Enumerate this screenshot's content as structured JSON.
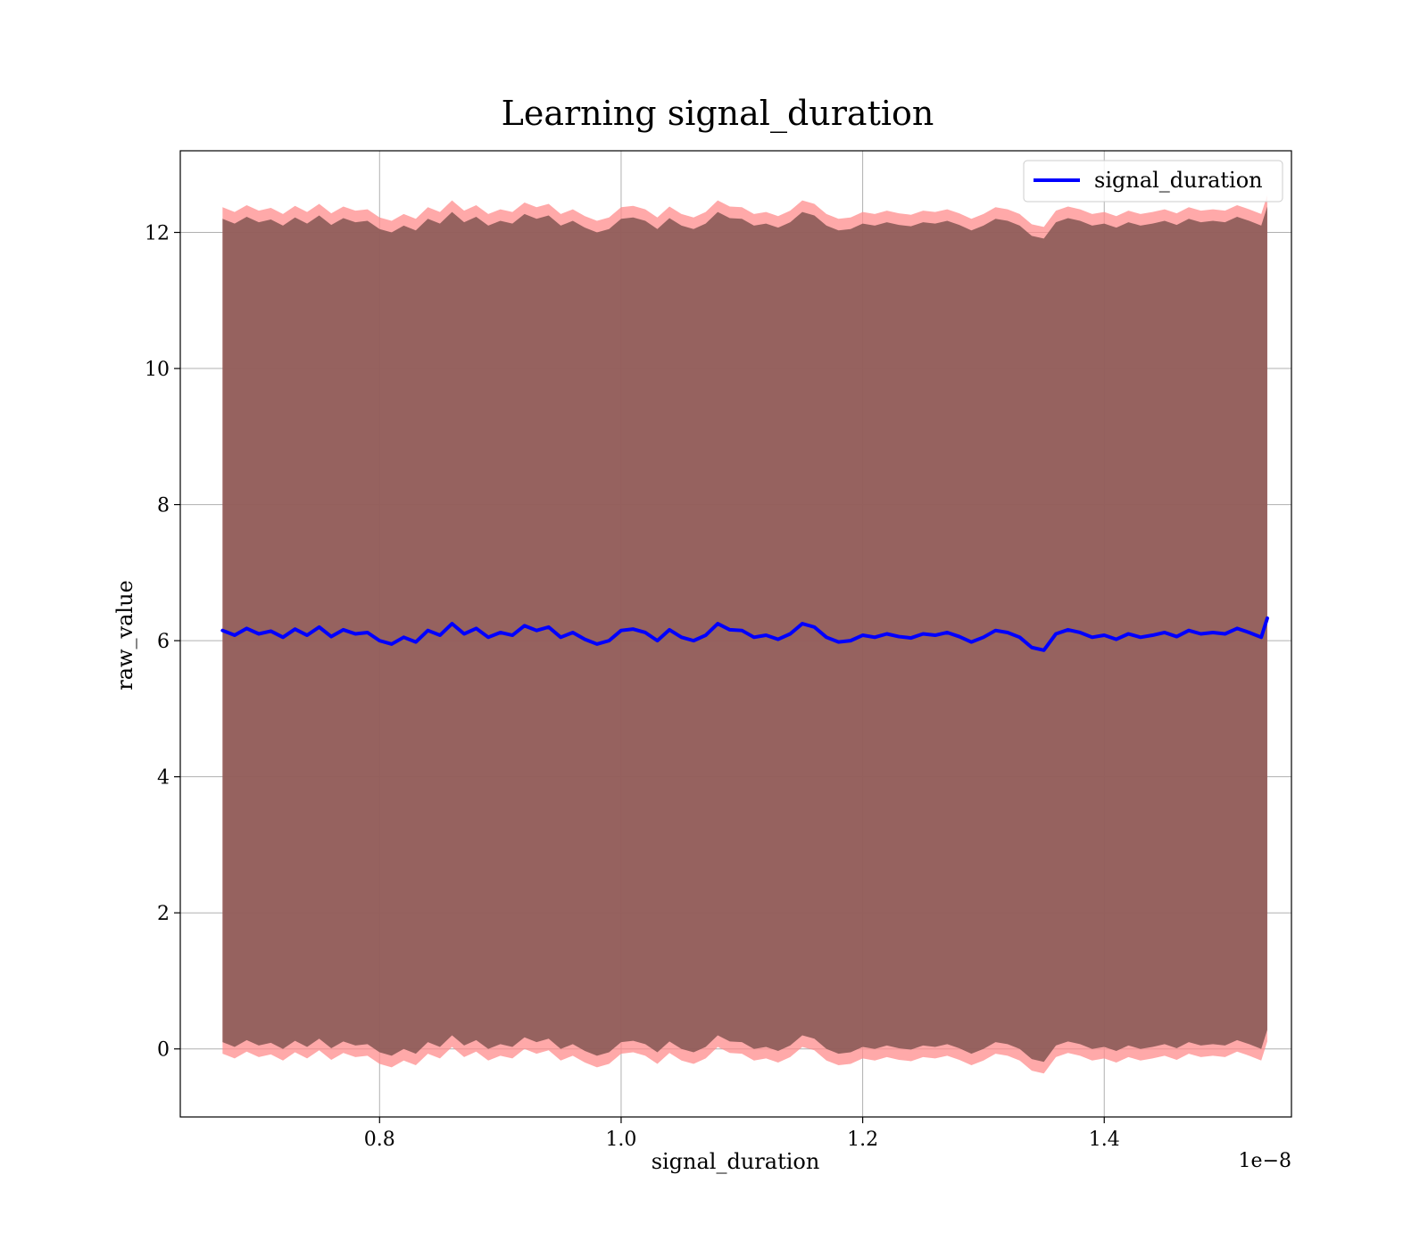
{
  "chart_data": {
    "type": "line",
    "title": "Learning signal_duration",
    "xlabel": "signal_duration",
    "ylabel": "raw_value",
    "x_offset_label": "1e−8",
    "xlim": [
      0.635,
      1.555
    ],
    "ylim": [
      -1.0,
      13.2
    ],
    "x_ticks": [
      0.8,
      1.0,
      1.2,
      1.4
    ],
    "x_tick_labels": [
      "0.8",
      "1.0",
      "1.2",
      "1.4"
    ],
    "y_ticks": [
      0,
      2,
      4,
      6,
      8,
      10,
      12
    ],
    "y_tick_labels": [
      "0",
      "2",
      "4",
      "6",
      "8",
      "10",
      "12"
    ],
    "grid": true,
    "legend_position": "top-right",
    "series": [
      {
        "name": "signal_duration",
        "color": "#0000ff",
        "x": [
          0.67,
          0.68,
          0.69,
          0.7,
          0.71,
          0.72,
          0.73,
          0.74,
          0.75,
          0.76,
          0.77,
          0.78,
          0.79,
          0.8,
          0.81,
          0.82,
          0.83,
          0.84,
          0.85,
          0.86,
          0.87,
          0.88,
          0.89,
          0.9,
          0.91,
          0.92,
          0.93,
          0.94,
          0.95,
          0.96,
          0.97,
          0.98,
          0.99,
          1.0,
          1.01,
          1.02,
          1.03,
          1.04,
          1.05,
          1.06,
          1.07,
          1.08,
          1.09,
          1.1,
          1.11,
          1.12,
          1.13,
          1.14,
          1.15,
          1.16,
          1.17,
          1.18,
          1.19,
          1.2,
          1.21,
          1.22,
          1.23,
          1.24,
          1.25,
          1.26,
          1.27,
          1.28,
          1.29,
          1.3,
          1.31,
          1.32,
          1.33,
          1.34,
          1.35,
          1.36,
          1.37,
          1.38,
          1.39,
          1.4,
          1.41,
          1.42,
          1.43,
          1.44,
          1.45,
          1.46,
          1.47,
          1.48,
          1.49,
          1.5,
          1.51,
          1.52,
          1.53,
          1.535
        ],
        "values": [
          6.15,
          6.08,
          6.18,
          6.1,
          6.14,
          6.05,
          6.17,
          6.08,
          6.2,
          6.06,
          6.16,
          6.1,
          6.12,
          6.0,
          5.95,
          6.05,
          5.98,
          6.15,
          6.08,
          6.25,
          6.1,
          6.18,
          6.05,
          6.12,
          6.08,
          6.22,
          6.15,
          6.2,
          6.05,
          6.12,
          6.02,
          5.95,
          6.0,
          6.15,
          6.17,
          6.12,
          6.0,
          6.16,
          6.05,
          6.0,
          6.08,
          6.25,
          6.16,
          6.15,
          6.05,
          6.08,
          6.02,
          6.1,
          6.25,
          6.2,
          6.05,
          5.98,
          6.0,
          6.08,
          6.05,
          6.1,
          6.06,
          6.04,
          6.1,
          6.08,
          6.12,
          6.06,
          5.98,
          6.05,
          6.15,
          6.12,
          6.05,
          5.9,
          5.86,
          6.1,
          6.16,
          6.12,
          6.05,
          6.08,
          6.02,
          6.1,
          6.05,
          6.08,
          6.12,
          6.06,
          6.15,
          6.1,
          6.12,
          6.1,
          6.18,
          6.12,
          6.05,
          6.33
        ],
        "band_inner_halfwidth": 6.05,
        "band_outer_halfwidth": 6.22,
        "band_inner_color": "#8b5a57",
        "band_outer_color": "#ff8c8c"
      }
    ]
  }
}
